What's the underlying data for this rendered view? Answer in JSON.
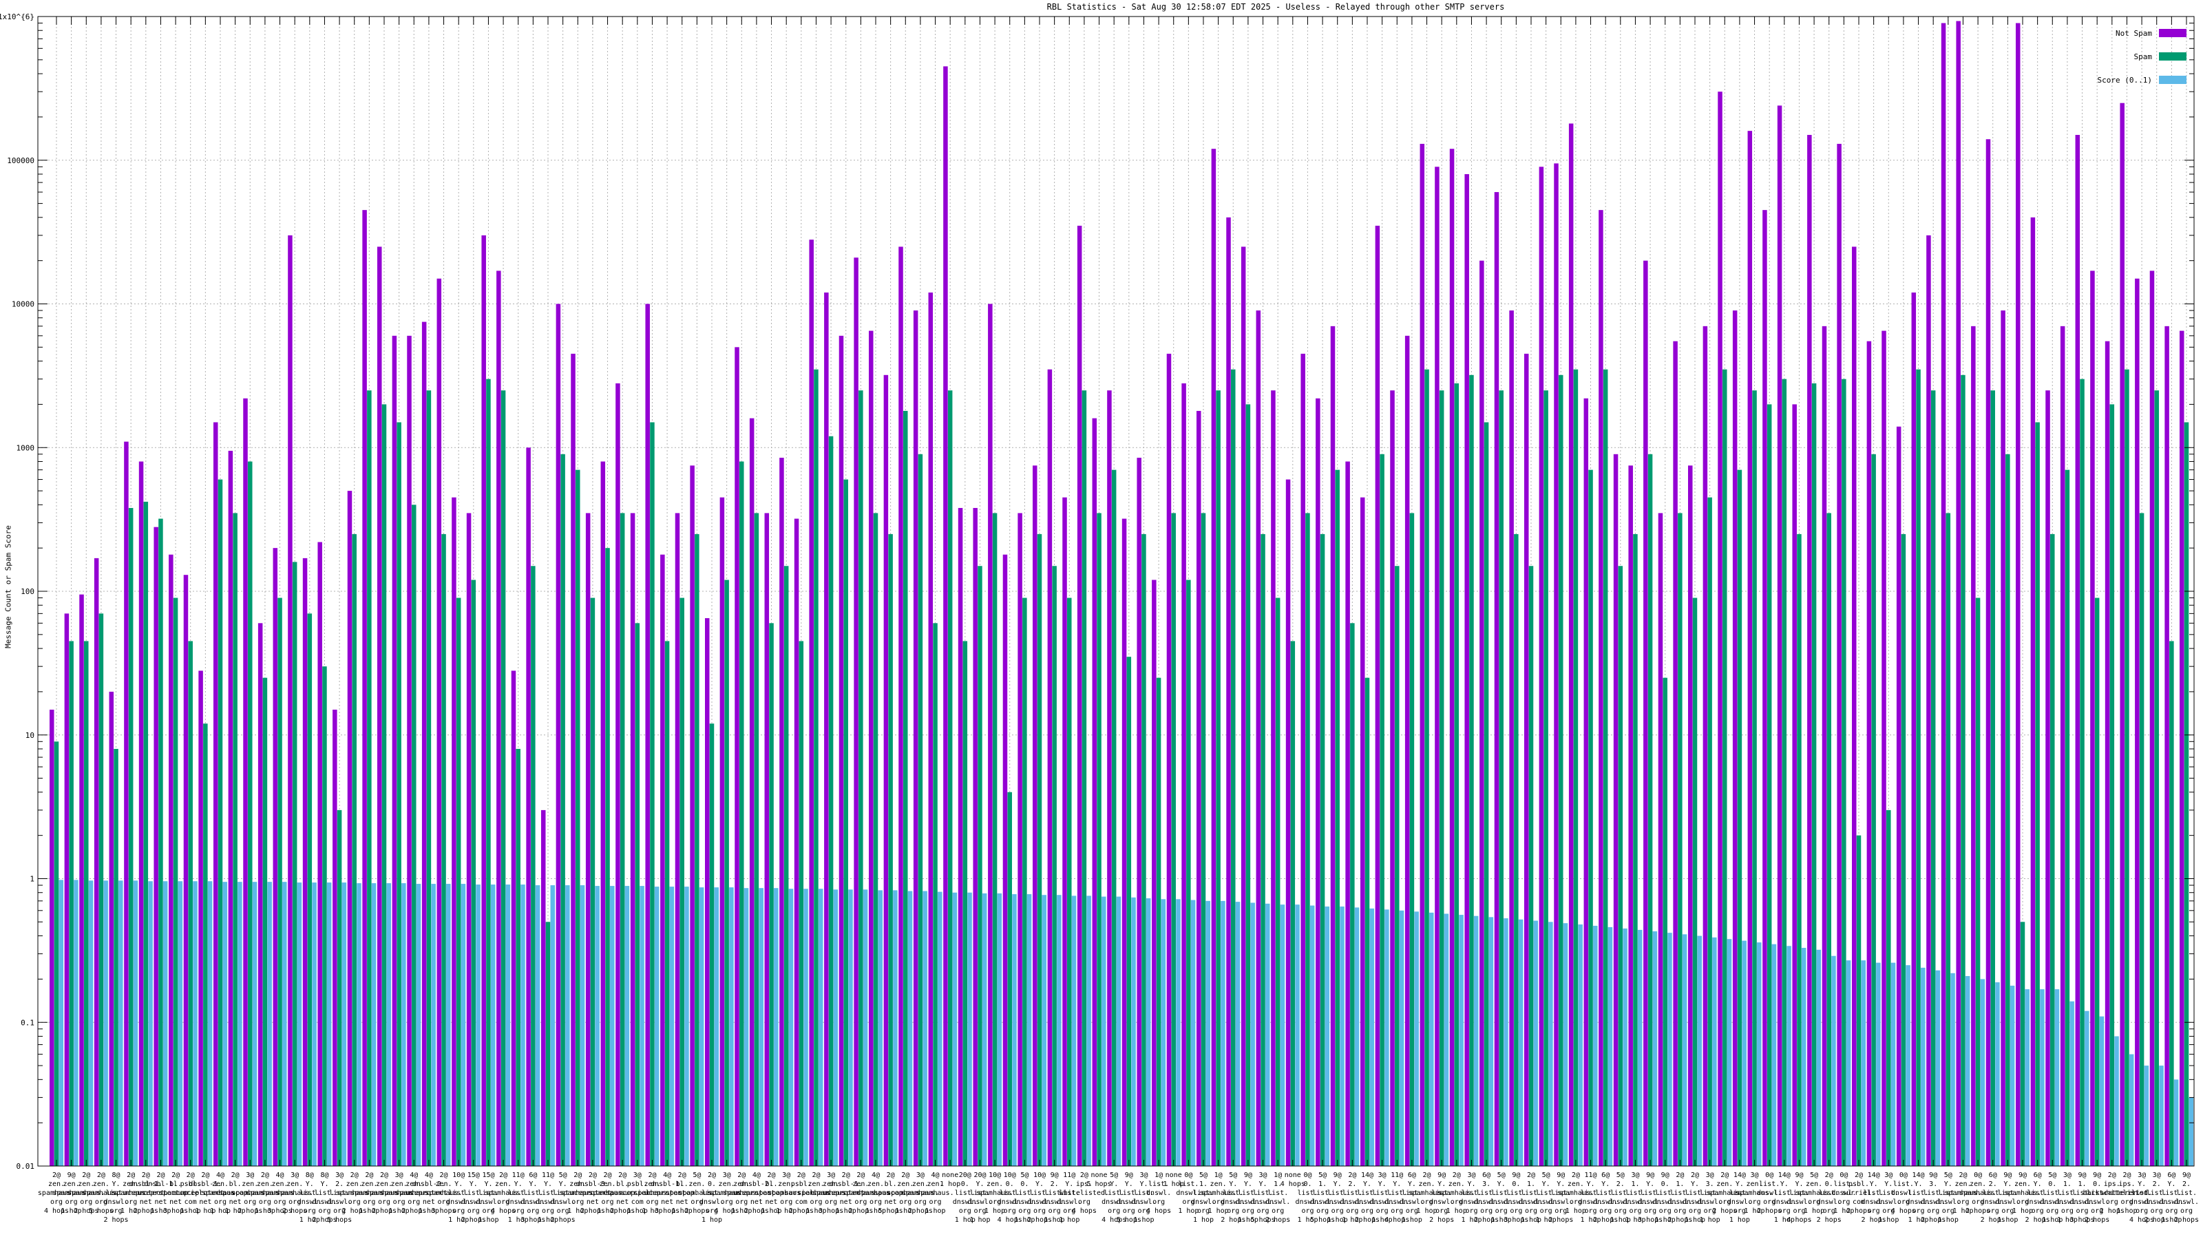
{
  "chart_data": {
    "type": "bar",
    "title": "RBL Statistics - Sat Aug 30 12:58:07 EDT 2025 - Useless - Relayed through other SMTP servers",
    "ylabel": "Message Count or Spam Score",
    "xlabel": "",
    "y_scale": "log",
    "ylim": [
      0.01,
      1000000
    ],
    "y_ticks": [
      "1x10^{6}",
      "100000",
      "10000",
      "1000",
      "100",
      "10",
      "1",
      "0.1",
      "0.01"
    ],
    "grid": "on",
    "legend_position": "top-right-inside",
    "legend": [
      {
        "label": "Not Spam",
        "color": "#9400d3"
      },
      {
        "label": "Spam",
        "color": "#009a70"
      },
      {
        "label": "Score (0..1)",
        "color": "#5db9e8"
      }
    ],
    "categories": [
      "2@\nzen.\nspamhaus.\norg\n4 hops",
      "9@\nzen.\nspamhaus.\norg\n1 hop",
      "2@\nzen.\nspamhaus.\norg\n2 hops",
      "2@\nzen.\nspamhaus.\norg\n5 hops",
      "8@\nY.\nlist.\ndnswl.\norg\n2 hops",
      "2@\nzen.\nspamhaus.\norg\n1 hop",
      "2@\ndnsbl-1.\nuceprotect.\nnet\n2 hops",
      "2@\ndnsbl-1.\nuceprotect.\nnet\n1 hop",
      "2@\nbl.\nspamcop.\nnet\n3 hops",
      "2@\npsbl.\nsurriel.\ncom\n1 hop",
      "2@\ndnsbl-1.\nuceprotect.\nnet\n1 hop",
      "4@\nzen.\nspamhaus.\norg\n1 hop",
      "2@\nbl.\nspamcop.\nnet\n1 hop",
      "3@\nzen.\nspamhaus.\norg\n2 hops",
      "2@\nzen.\nspamhaus.\norg\n1 hop",
      "4@\nzen.\nspamhaus.\norg\n3 hops",
      "3@\nzen.\nspamhaus.\norg\n2 hops",
      "8@\nY.\nlist.\ndnswl.\norg\n1 hop",
      "8@\nY.\nlist.\ndnswl.\norg\n2 hops",
      "3@\n2.\nlist.\ndnswl.\norg\n5 hops",
      "2@\nzen.\nspamhaus.\norg\n2 hops",
      "2@\nzen.\nspamhaus.\norg\n1 hop",
      "2@\nzen.\nspamhaus.\norg\n2 hops",
      "3@\nzen.\nspamhaus.\norg\n1 hop",
      "4@\nzen.\nspamhaus.\norg\n2 hops",
      "4@\ndnsbl-2.\nuceprotect.\nnet\n1 hop",
      "2@\nzen.\nspamhaus.\norg\n3 hops",
      "10@\nY.\nlist.\ndnswl.\norg\n1 hop",
      "15@\nY.\nlist.\ndnswl.\norg\n2 hops",
      "15@\nY.\nlist.\ndnswl.\norg\n1 hop",
      "2@\nzen.\nspamhaus.\norg\n4 hops",
      "11@\nY.\nlist.\ndnswl.\norg\n1 hop",
      "6@\nY.\nlist.\ndnswl.\norg\n3 hops",
      "11@\nY.\nlist.\ndnswl.\norg\n1 hop",
      "5@\nY.\nlist.\ndnswl.\norg\n2 hops",
      "2@\nzen.\nspamhaus.\norg\n1 hop",
      "2@\ndnsbl-3.\nuceprotect.\nnet\n2 hops",
      "2@\nzen.\nspamhaus.\norg\n1 hop",
      "2@\nbl.\nspamcop.\nnet\n2 hops",
      "3@\npsbl.\nsurriel.\ncom\n1 hop",
      "2@\nzen.\nspamhaus.\norg\n1 hop",
      "4@\ndnsbl-1.\nuceprotect.\nnet\n3 hops",
      "2@\nbl.\nspamcop.\nnet\n1 hop",
      "5@\nzen.\nspamhaus.\norg\n2 hops",
      "2@\n0.\nlist.\ndnswl.\norg\n1 hop",
      "3@\nzen.\nspamhaus.\norg\n4 hops",
      "2@\nzen.\nspamhaus.\norg\n1 hop",
      "4@\ndnsbl-2.\nuceprotect.\nnet\n2 hops",
      "2@\nbl.\nspamcop.\nnet\n1 hop",
      "3@\nzen.\nspamhaus.\norg\n1 hop",
      "2@\npsbl.\nsurriel.\ncom\n2 hops",
      "2@\nzen.\nspamhaus.\norg\n1 hop",
      "3@\nzen.\nspamhaus.\norg\n3 hops",
      "2@\ndnsbl-1.\nuceprotect.\nnet\n1 hop",
      "2@\nzen.\nspamhaus.\norg\n2 hops",
      "4@\nzen.\nspamhaus.\norg\n1 hop",
      "2@\nbl.\nspamcop.\nnet\n5 hops",
      "2@\nzen.\nspamhaus.\norg\n1 hop",
      "3@\nzen.\nspamhaus.\norg\n2 hops",
      "4@\nzen.\nspamhaus.\norg\n1 hop",
      "none\n1 hop",
      "20@\n0.\nlist.\ndnswl.\norg\n1 hop",
      "20@\nY.\nlist.\ndnswl.\norg\n1 hop",
      "10@\nzen.\nspamhaus.\norg\n1 hop",
      "10@\n0.\nlist.\ndnswl.\norg\n4 hops",
      "5@\n0.\nlist.\ndnswl.\norg\n1 hop",
      "10@\nY.\nlist.\ndnswl.\norg\n2 hops",
      "9@\n2.\nlist.\ndnswl.\norg\n1 hop",
      "11@\nY.\nlist.\ndnswl.\norg\n1 hop",
      "2@\nips.\nwhitelisted.\norg\n4 hops",
      "none\n5 hops",
      "5@\nY.\nlist.\ndnswl.\norg\n4 hops",
      "9@\nY.\nlist.\ndnswl.\norg\n5 hops",
      "3@\nY.\nlist.\ndnswl.\norg\n1 hop",
      "1@\nlist.\ndnswl.\norg\n4 hops",
      "none\n1 hop",
      "0@\nlist.\ndnswl.\norg\n1 hop",
      "5@\n1.\nlist.\ndnswl.\norg\n1 hop",
      "1@\nzen.\nspamhaus.\norg\n1 hop",
      "5@\nY.\nlist.\ndnswl.\norg\n2 hops",
      "9@\nY.\nlist.\ndnswl.\norg\n1 hop",
      "3@\nY.\nlist.\ndnswl.\norg\n5 hops",
      "1@\n1.\nlist.\ndnswl.\norg\n2 hops",
      "none\n4 hops",
      "0@\n0.\nlist.\ndnswl.\norg\n1 hop",
      "5@\n1.\nlist.\ndnswl.\norg\n5 hops",
      "9@\nY.\nlist.\ndnswl.\norg\n1 hop",
      "2@\n2.\nlist.\ndnswl.\norg\n1 hop",
      "14@\nY.\nlist.\ndnswl.\norg\n2 hops",
      "3@\nY.\nlist.\ndnswl.\norg\n1 hop",
      "11@\nY.\nlist.\ndnswl.\norg\n4 hops",
      "6@\nY.\nlist.\ndnswl.\norg\n1 hop",
      "2@\nzen.\nspamhaus.\norg\n1 hop",
      "9@\nY.\nlist.\ndnswl.\norg\n2 hops",
      "2@\nzen.\nspamhaus.\norg\n1 hop",
      "3@\nY.\nlist.\ndnswl.\norg\n1 hop",
      "6@\n3.\nlist.\ndnswl.\norg\n2 hops",
      "5@\nY.\nlist.\ndnswl.\norg\n1 hop",
      "9@\n0.\nlist.\ndnswl.\norg\n3 hops",
      "2@\n1.\nlist.\ndnswl.\norg\n1 hop",
      "5@\nY.\nlist.\ndnswl.\norg\n1 hop",
      "9@\nY.\nlist.\ndnswl.\norg\n2 hops",
      "2@\nzen.\nspamhaus.\norg\n1 hop",
      "11@\nY.\nlist.\ndnswl.\norg\n1 hop",
      "6@\nY.\nlist.\ndnswl.\norg\n2 hops",
      "5@\n2.\nlist.\ndnswl.\norg\n1 hop",
      "3@\n1.\nlist.\ndnswl.\norg\n1 hop",
      "9@\nY.\nlist.\ndnswl.\norg\n3 hops",
      "9@\n0.\nlist.\ndnswl.\norg\n1 hop",
      "2@\n1.\nlist.\ndnswl.\norg\n2 hops",
      "2@\nY.\nlist.\ndnswl.\norg\n1 hop",
      "3@\n3.\nlist.\ndnswl.\norg\n1 hop",
      "2@\nzen.\nspamhaus.\norg\n2 hops",
      "14@\nY.\nlist.\ndnswl.\norg\n1 hop",
      "3@\nzen.\nspamhaus.\norg\n1 hop",
      "0@\nlist.\ndnswl.\norg\n2 hops",
      "14@\nY.\nlist.\ndnswl.\norg\n1 hop",
      "9@\nY.\nlist.\ndnswl.\norg\n4 hops",
      "5@\nzen.\nspamhaus.\norg\n1 hop",
      "2@\n0.\nlist.\ndnswl.\norg\n2 hops",
      "0@\nlist.\ndnswl.\norg\n1 hop",
      "2@\npsbl.\nsurriel.\ncom\n2 hops",
      "14@\nY.\nlist.\ndnswl.\norg\n2 hops",
      "3@\nY.\nlist.\ndnswl.\norg\n1 hop",
      "0@\nlist.\ndnswl.\norg\n4 hops",
      "14@\nY.\nlist.\ndnswl.\norg\n1 hop",
      "9@\n3.\nlist.\ndnswl.\norg\n2 hops",
      "5@\nY.\nlist.\ndnswl.\norg\n1 hop",
      "2@\nzen.\nspamhaus.\norg\n1 hop",
      "0@\nzen.\nspamhaus.\norg\n2 hops",
      "6@\n2.\nlist.\ndnswl.\norg\n2 hops",
      "9@\nY.\nlist.\ndnswl.\norg\n1 hop",
      "9@\nzen.\nspamhaus.\norg\n1 hop",
      "6@\nY.\nlist.\ndnswl.\norg\n2 hops",
      "5@\n0.\nlist.\ndnswl.\norg\n1 hop",
      "3@\n1.\nlist.\ndnswl.\norg\n1 hop",
      "9@\n1.\nlist.\ndnswl.\norg\n3 hops",
      "9@\n0.\nlist.\ndnswl.\norg\n2 hops",
      "2@\nips.\nbackscatterer.\norg\n2 hops",
      "2@\nips.\nwhitelisted.\norg\n1 hop",
      "3@\nY.\nlist.\ndnswl.\norg\n4 hops",
      "3@\n2.\nlist.\ndnswl.\norg\n2 hops",
      "6@\nY.\nlist.\ndnswl.\norg\n1 hop",
      "9@\n2.\nlist.\ndnswl.\norg\n2 hops"
    ],
    "series": [
      {
        "name": "Not Spam",
        "color": "#9400d3",
        "values": [
          15,
          70,
          95,
          170,
          20,
          1100,
          800,
          280,
          180,
          130,
          28,
          1500,
          950,
          2200,
          60,
          200,
          30000,
          170,
          220,
          15,
          500,
          45000,
          25000,
          6000,
          6000,
          7500,
          15000,
          450,
          350,
          30000,
          17000,
          28,
          1000,
          3,
          10000,
          4500,
          350,
          800,
          2800,
          350,
          10000,
          180,
          350,
          750,
          65,
          450,
          5000,
          1600,
          350,
          850,
          320,
          28000,
          12000,
          6000,
          21000,
          6500,
          3200,
          25000,
          9000,
          12000,
          450000,
          380,
          380,
          10000,
          180,
          350,
          750,
          3500,
          450,
          35000,
          1600,
          2500,
          320,
          850,
          120,
          4500,
          2800,
          1800,
          120000,
          40000,
          25000,
          9000,
          2500,
          600,
          4500,
          2200,
          7000,
          800,
          450,
          35000,
          2500,
          6000,
          130000,
          90000,
          120000,
          80000,
          20000,
          60000,
          9000,
          4500,
          90000,
          95000,
          180000,
          2200,
          45000,
          900,
          750,
          20000,
          350,
          5500,
          750,
          7000,
          300000,
          9000,
          160000,
          45000,
          240000,
          2000,
          150000,
          7000,
          130000,
          25000,
          5500,
          6500,
          1400,
          12000,
          30000,
          900000,
          930000,
          7000,
          140000,
          9000,
          900000,
          40000,
          2500,
          7000,
          150000,
          17000,
          5500,
          250000,
          15000,
          17000,
          7000,
          6500
        ]
      },
      {
        "name": "Spam",
        "color": "#009a70",
        "values": [
          9,
          45,
          45,
          70,
          8,
          380,
          420,
          320,
          90,
          45,
          12,
          600,
          350,
          800,
          25,
          90,
          160,
          70,
          30,
          3,
          250,
          2500,
          2000,
          1500,
          400,
          2500,
          250,
          90,
          120,
          3000,
          2500,
          8,
          150,
          0.5,
          900,
          700,
          90,
          200,
          350,
          60,
          1500,
          45,
          90,
          250,
          12,
          120,
          800,
          350,
          60,
          150,
          45,
          3500,
          1200,
          600,
          2500,
          350,
          250,
          1800,
          900,
          60,
          2500,
          45,
          150,
          350,
          4,
          90,
          250,
          150,
          90,
          2500,
          350,
          700,
          35,
          250,
          25,
          350,
          120,
          350,
          2500,
          3500,
          2000,
          250,
          90,
          45,
          350,
          250,
          700,
          60,
          25,
          900,
          150,
          350,
          3500,
          2500,
          2800,
          3200,
          1500,
          2500,
          250,
          150,
          2500,
          3200,
          3500,
          700,
          3500,
          150,
          250,
          900,
          25,
          350,
          90,
          450,
          3500,
          700,
          2500,
          2000,
          3000,
          250,
          2800,
          350,
          3000,
          2,
          900,
          3,
          250,
          3500,
          2500,
          350,
          3200,
          90,
          2500,
          900,
          0.5,
          1500,
          250,
          700,
          3000,
          90,
          2000,
          3500,
          350,
          2500,
          45,
          1500
        ]
      },
      {
        "name": "Score (0..1)",
        "color": "#5db9e8",
        "values": [
          0.98,
          0.98,
          0.97,
          0.97,
          0.97,
          0.97,
          0.96,
          0.96,
          0.96,
          0.96,
          0.96,
          0.95,
          0.95,
          0.95,
          0.95,
          0.95,
          0.94,
          0.94,
          0.94,
          0.94,
          0.93,
          0.93,
          0.93,
          0.93,
          0.92,
          0.92,
          0.92,
          0.92,
          0.91,
          0.91,
          0.91,
          0.91,
          0.9,
          0.9,
          0.9,
          0.9,
          0.89,
          0.89,
          0.89,
          0.89,
          0.88,
          0.88,
          0.88,
          0.87,
          0.87,
          0.87,
          0.86,
          0.86,
          0.86,
          0.85,
          0.85,
          0.85,
          0.84,
          0.84,
          0.84,
          0.83,
          0.83,
          0.82,
          0.82,
          0.81,
          0.8,
          0.8,
          0.79,
          0.79,
          0.78,
          0.78,
          0.77,
          0.77,
          0.76,
          0.76,
          0.75,
          0.75,
          0.74,
          0.73,
          0.72,
          0.72,
          0.71,
          0.7,
          0.7,
          0.69,
          0.68,
          0.67,
          0.66,
          0.66,
          0.65,
          0.64,
          0.64,
          0.63,
          0.62,
          0.61,
          0.6,
          0.59,
          0.58,
          0.57,
          0.56,
          0.55,
          0.54,
          0.53,
          0.52,
          0.51,
          0.5,
          0.49,
          0.48,
          0.47,
          0.46,
          0.45,
          0.44,
          0.43,
          0.42,
          0.41,
          0.4,
          0.39,
          0.38,
          0.37,
          0.36,
          0.35,
          0.34,
          0.33,
          0.32,
          0.29,
          0.27,
          0.27,
          0.26,
          0.26,
          0.25,
          0.24,
          0.23,
          0.22,
          0.21,
          0.2,
          0.19,
          0.18,
          0.17,
          0.17,
          0.17,
          0.14,
          0.12,
          0.11,
          0.08,
          0.06,
          0.05,
          0.05,
          0.04,
          0.03
        ]
      }
    ]
  }
}
